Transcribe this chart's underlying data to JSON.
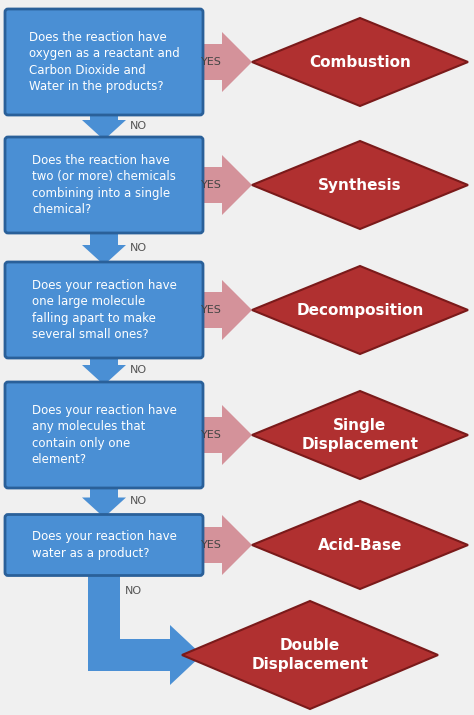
{
  "background_color": "#f0f0f0",
  "box_color": "#4a8fd4",
  "box_edge_color": "#2a6099",
  "diamond_color": "#b03030",
  "diamond_edge_color": "#7a1a1a",
  "arrow_yes_color": "#d4929a",
  "arrow_no_color": "#4a8fd4",
  "text_color_box": "#ffffff",
  "text_color_diamond": "#ffffff",
  "text_color_no": "#555555",
  "text_color_yes": "#444444",
  "questions": [
    "Does the reaction have\noxygen as a reactant and\nCarbon Dioxide and\nWater in the products?",
    "Does the reaction have\ntwo (or more) chemicals\ncombining into a single\nchemical?",
    "Does your reaction have\none large molecule\nfalling apart to make\nseveral small ones?",
    "Does your reaction have\nany molecules that\ncontain only one\nelement?",
    "Does your reaction have\nwater as a product?"
  ],
  "answers": [
    "Combustion",
    "Synthesis",
    "Decomposition",
    "Single\nDisplacement",
    "Acid-Base",
    "Double\nDisplacement"
  ],
  "figsize": [
    4.74,
    7.15
  ],
  "dpi": 100
}
